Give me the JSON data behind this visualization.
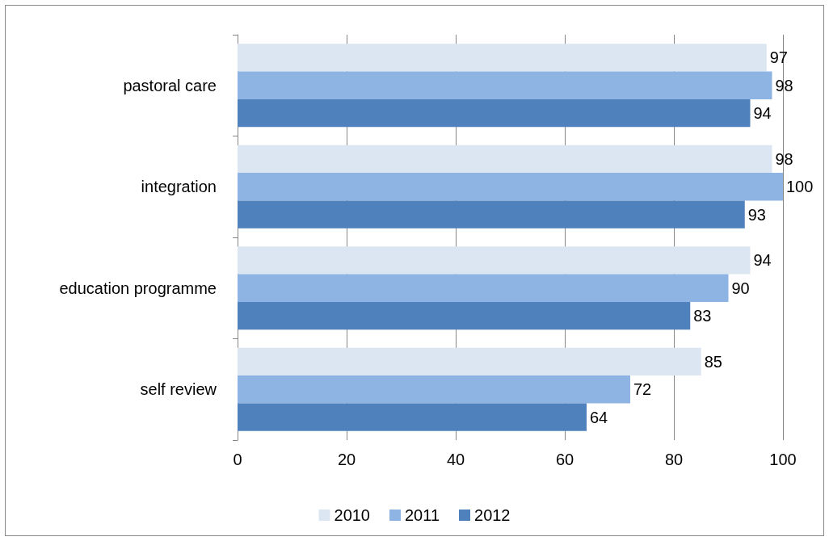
{
  "chart_data": {
    "type": "bar",
    "orientation": "horizontal",
    "categories": [
      "pastoral care",
      "integration",
      "education programme",
      "self review"
    ],
    "series": [
      {
        "name": "2010",
        "color": "#dce6f2",
        "values": [
          97,
          98,
          94,
          85
        ]
      },
      {
        "name": "2011",
        "color": "#8eb4e3",
        "values": [
          98,
          100,
          90,
          72
        ]
      },
      {
        "name": "2012",
        "color": "#4f81bd",
        "values": [
          94,
          93,
          83,
          64
        ]
      }
    ],
    "xlim": [
      0,
      100
    ],
    "xticks": [
      0,
      20,
      40,
      60,
      80,
      100
    ],
    "grid": "x",
    "legend": "bottom",
    "data_labels": true
  }
}
